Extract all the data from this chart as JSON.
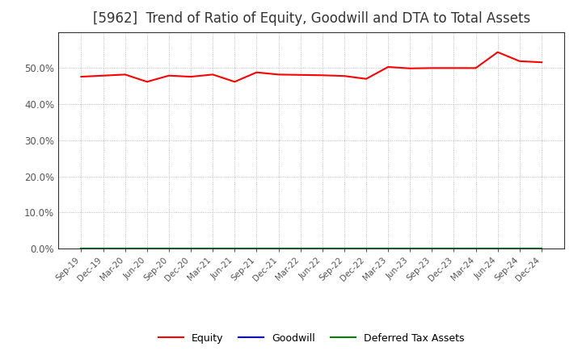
{
  "title": "[5962]  Trend of Ratio of Equity, Goodwill and DTA to Total Assets",
  "x_labels": [
    "Sep-19",
    "Dec-19",
    "Mar-20",
    "Jun-20",
    "Sep-20",
    "Dec-20",
    "Mar-21",
    "Jun-21",
    "Sep-21",
    "Dec-21",
    "Mar-22",
    "Jun-22",
    "Sep-22",
    "Dec-22",
    "Mar-23",
    "Jun-23",
    "Sep-23",
    "Dec-23",
    "Mar-24",
    "Jun-24",
    "Sep-24",
    "Dec-24"
  ],
  "equity": [
    0.476,
    0.479,
    0.482,
    0.462,
    0.479,
    0.476,
    0.482,
    0.462,
    0.488,
    0.482,
    0.481,
    0.48,
    0.478,
    0.47,
    0.503,
    0.499,
    0.5,
    0.5,
    0.5,
    0.544,
    0.519,
    0.516
  ],
  "goodwill": [
    0,
    0,
    0,
    0,
    0,
    0,
    0,
    0,
    0,
    0,
    0,
    0,
    0,
    0,
    0,
    0,
    0,
    0,
    0,
    0,
    0,
    0
  ],
  "dta": [
    0,
    0,
    0,
    0,
    0,
    0,
    0,
    0,
    0,
    0,
    0,
    0,
    0,
    0,
    0,
    0,
    0,
    0,
    0,
    0,
    0,
    0
  ],
  "equity_color": "#FF0000",
  "goodwill_color": "#0000FF",
  "dta_color": "#008000",
  "ylim": [
    0.0,
    0.6
  ],
  "yticks": [
    0.0,
    0.1,
    0.2,
    0.3,
    0.4,
    0.5
  ],
  "background_color": "#FFFFFF",
  "grid_color": "#AAAAAA",
  "title_fontsize": 12,
  "title_color": "#333333",
  "tick_color": "#555555",
  "spine_color": "#333333"
}
